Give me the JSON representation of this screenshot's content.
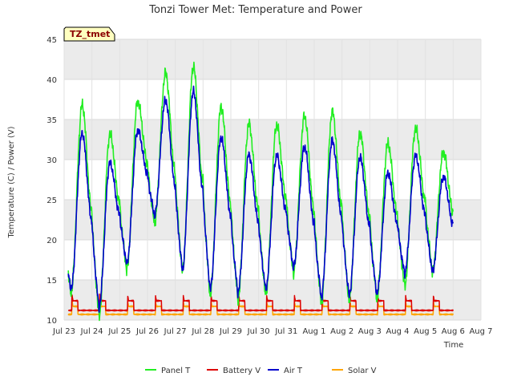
{
  "chart_data": {
    "type": "line",
    "title": "Tonzi Tower Met: Temperature and Power",
    "badge": "TZ_tmet",
    "xlabel": "Time",
    "ylabel": "Temperature (C) / Power (V)",
    "xlim": [
      0,
      15
    ],
    "ylim": [
      10,
      45
    ],
    "x_ticks": [
      0,
      1,
      2,
      3,
      4,
      5,
      6,
      7,
      8,
      9,
      10,
      11,
      12,
      13,
      14,
      15
    ],
    "x_tick_labels": [
      "Jul 23",
      "Jul 24",
      "Jul 25",
      "Jul 26",
      "Jul 27",
      "Jul 28",
      "Jul 29",
      "Jul 30",
      "Jul 31",
      "Aug 1",
      "Aug 2",
      "Aug 3",
      "Aug 4",
      "Aug 5",
      "Aug 6",
      "Aug 7"
    ],
    "y_ticks": [
      10,
      15,
      20,
      25,
      30,
      35,
      40,
      45
    ],
    "y_tick_labels": [
      "10",
      "15",
      "20",
      "25",
      "30",
      "35",
      "40",
      "45"
    ],
    "grid": true,
    "legend_position": "bottom",
    "colors": {
      "panel_t": "#22ee22",
      "battery_v": "#dd0000",
      "air_t": "#0000cc",
      "solar_v": "#ffa500",
      "band": "#ebebeb"
    },
    "daily_extremes": {
      "days": [
        0,
        1,
        2,
        3,
        4,
        5,
        6,
        7,
        8,
        9,
        10,
        11,
        12,
        13
      ],
      "panel_t_max": [
        36.8,
        33.2,
        37.3,
        40.8,
        41.6,
        36.6,
        34.5,
        34.3,
        35.4,
        36.0,
        33.3,
        32.0,
        33.9,
        31.0
      ],
      "panel_t_min": [
        13.4,
        10.4,
        16.2,
        22.0,
        16.0,
        13.0,
        12.5,
        13.0,
        15.8,
        12.0,
        12.2,
        12.6,
        14.2,
        16.0
      ],
      "air_t_max": [
        33.3,
        29.6,
        33.7,
        37.4,
        38.5,
        32.8,
        30.6,
        30.5,
        31.6,
        32.4,
        30.3,
        28.3,
        30.5,
        27.9
      ],
      "air_t_min": [
        13.8,
        11.5,
        17.0,
        23.0,
        16.2,
        13.8,
        13.4,
        13.8,
        16.5,
        12.8,
        13.0,
        13.2,
        15.8,
        16.0
      ]
    },
    "series": [
      {
        "name": "Panel T",
        "color": "#22ee22"
      },
      {
        "name": "Battery V",
        "color": "#dd0000"
      },
      {
        "name": "Air T",
        "color": "#0000cc"
      },
      {
        "name": "Solar V",
        "color": "#ffa500"
      }
    ]
  }
}
